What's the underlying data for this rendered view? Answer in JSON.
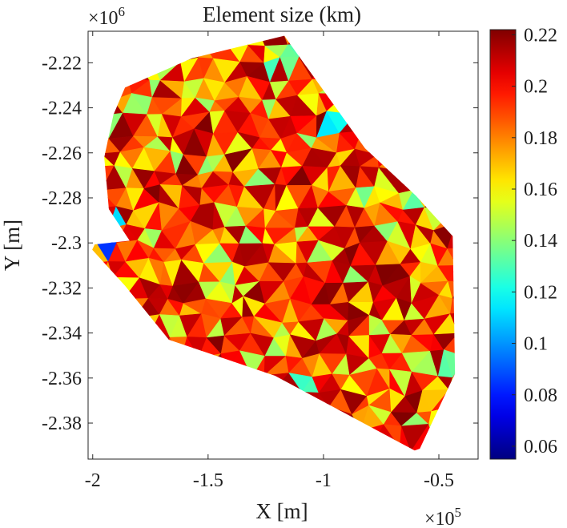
{
  "chart_data": {
    "type": "heatmap",
    "title": "Element size (km)",
    "xlabel": "X [m]",
    "ylabel": "Y [m]",
    "x_exponent_label": "×10",
    "x_exponent_power": "5",
    "y_exponent_label": "×10",
    "y_exponent_power": "6",
    "xlim": [
      -2.02,
      -0.33
    ],
    "ylim": [
      -2.396,
      -2.206
    ],
    "x_ticks": [
      {
        "value": -2.0,
        "label": "-2"
      },
      {
        "value": -1.5,
        "label": "-1.5"
      },
      {
        "value": -1.0,
        "label": "-1"
      },
      {
        "value": -0.5,
        "label": "-0.5"
      }
    ],
    "y_ticks": [
      {
        "value": -2.22,
        "label": "-2.22"
      },
      {
        "value": -2.24,
        "label": "-2.24"
      },
      {
        "value": -2.26,
        "label": "-2.26"
      },
      {
        "value": -2.28,
        "label": "-2.28"
      },
      {
        "value": -2.3,
        "label": "-2.3"
      },
      {
        "value": -2.32,
        "label": "-2.32"
      },
      {
        "value": -2.34,
        "label": "-2.34"
      },
      {
        "value": -2.36,
        "label": "-2.36"
      },
      {
        "value": -2.38,
        "label": "-2.38"
      }
    ],
    "colorbar": {
      "colormap": "jet",
      "range": [
        0.055,
        0.222
      ],
      "ticks": [
        {
          "value": 0.22,
          "label": "0.22"
        },
        {
          "value": 0.2,
          "label": "0.2"
        },
        {
          "value": 0.18,
          "label": "0.18"
        },
        {
          "value": 0.16,
          "label": "0.16"
        },
        {
          "value": 0.14,
          "label": "0.14"
        },
        {
          "value": 0.12,
          "label": "0.12"
        },
        {
          "value": 0.1,
          "label": "0.1"
        },
        {
          "value": 0.08,
          "label": "0.08"
        },
        {
          "value": 0.06,
          "label": "0.06"
        }
      ]
    },
    "domain_boundary": [
      [
        -1.86,
        -2.231
      ],
      [
        -1.57,
        -2.218
      ],
      [
        -1.17,
        -2.208
      ],
      [
        -0.82,
        -2.258
      ],
      [
        -0.6,
        -2.279
      ],
      [
        -0.44,
        -2.297
      ],
      [
        -0.43,
        -2.358
      ],
      [
        -0.59,
        -2.393
      ],
      [
        -1.21,
        -2.359
      ],
      [
        -1.67,
        -2.343
      ],
      [
        -1.86,
        -2.319
      ],
      [
        -2.02,
        -2.301
      ],
      [
        -1.84,
        -2.299
      ],
      [
        -1.93,
        -2.285
      ],
      [
        -1.95,
        -2.262
      ],
      [
        -1.91,
        -2.243
      ]
    ],
    "value_regions": [
      {
        "polygon": [
          [
            -1.2,
            -2.212
          ],
          [
            -1.05,
            -2.214
          ],
          [
            -1.1,
            -2.224
          ],
          [
            -1.25,
            -2.222
          ]
        ],
        "value": 0.135
      },
      {
        "polygon": [
          [
            -0.97,
            -2.238
          ],
          [
            -0.87,
            -2.245
          ],
          [
            -0.9,
            -2.256
          ],
          [
            -0.99,
            -2.248
          ]
        ],
        "value": 0.115
      },
      {
        "polygon": [
          [
            -0.62,
            -2.272
          ],
          [
            -0.53,
            -2.284
          ],
          [
            -0.6,
            -2.288
          ],
          [
            -0.66,
            -2.279
          ]
        ],
        "value": 0.14
      },
      {
        "polygon": [
          [
            -2.0,
            -2.298
          ],
          [
            -1.94,
            -2.295
          ],
          [
            -1.92,
            -2.306
          ],
          [
            -1.99,
            -2.305
          ]
        ],
        "value": 0.085
      },
      {
        "polygon": [
          [
            -1.93,
            -2.284
          ],
          [
            -1.87,
            -2.281
          ],
          [
            -1.88,
            -2.292
          ],
          [
            -1.93,
            -2.293
          ]
        ],
        "value": 0.12
      },
      {
        "polygon": [
          [
            -1.12,
            -2.358
          ],
          [
            -1.04,
            -2.354
          ],
          [
            -1.05,
            -2.366
          ],
          [
            -1.13,
            -2.366
          ]
        ],
        "value": 0.125
      },
      {
        "polygon": [
          [
            -0.47,
            -2.35
          ],
          [
            -0.43,
            -2.352
          ],
          [
            -0.44,
            -2.362
          ],
          [
            -0.48,
            -2.36
          ]
        ],
        "value": 0.13
      },
      {
        "polygon": [
          [
            -1.62,
            -2.228
          ],
          [
            -1.5,
            -2.224
          ],
          [
            -1.52,
            -2.236
          ],
          [
            -1.63,
            -2.236
          ]
        ],
        "value": 0.15
      },
      {
        "polygon": [
          [
            -0.88,
            -2.27
          ],
          [
            -0.8,
            -2.275
          ],
          [
            -0.81,
            -2.285
          ],
          [
            -0.89,
            -2.281
          ]
        ],
        "value": 0.145
      },
      {
        "polygon": [
          [
            -0.76,
            -2.327
          ],
          [
            -0.7,
            -2.331
          ],
          [
            -0.72,
            -2.341
          ],
          [
            -0.78,
            -2.337
          ]
        ],
        "value": 0.15
      },
      {
        "polygon": [
          [
            -1.5,
            -2.3
          ],
          [
            -1.42,
            -2.302
          ],
          [
            -1.43,
            -2.312
          ],
          [
            -1.52,
            -2.31
          ]
        ],
        "value": 0.14
      },
      {
        "polygon": [
          [
            -0.8,
            -2.38
          ],
          [
            -0.71,
            -2.377
          ],
          [
            -0.72,
            -2.388
          ],
          [
            -0.81,
            -2.388
          ]
        ],
        "value": 0.205
      }
    ]
  }
}
